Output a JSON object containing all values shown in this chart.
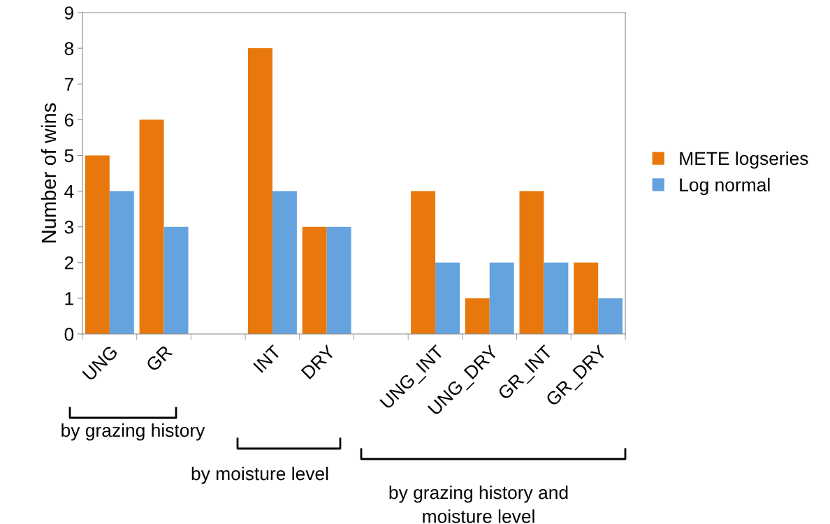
{
  "chart_data": {
    "type": "bar",
    "ylabel": "Number of wins",
    "categories": [
      "UNG",
      "GR",
      null,
      "INT",
      "DRY",
      null,
      "UNG_INT",
      "UNG_DRY",
      "GR_INT",
      "GR_DRY"
    ],
    "series": [
      {
        "name": "METE logseries",
        "color": "#e8780c",
        "values": [
          5,
          6,
          null,
          8,
          3,
          null,
          4,
          1,
          4,
          2
        ]
      },
      {
        "name": "Log normal",
        "color": "#65a3df",
        "values": [
          4,
          3,
          null,
          4,
          3,
          null,
          2,
          2,
          2,
          1
        ]
      }
    ],
    "ylim": [
      0,
      9
    ],
    "yticks": [
      0,
      1,
      2,
      3,
      4,
      5,
      6,
      7,
      8,
      9
    ],
    "grid": false,
    "legend": "right",
    "annotations": [
      "by grazing history",
      "by moisture level",
      "by grazing history and\nmoisture level"
    ]
  }
}
